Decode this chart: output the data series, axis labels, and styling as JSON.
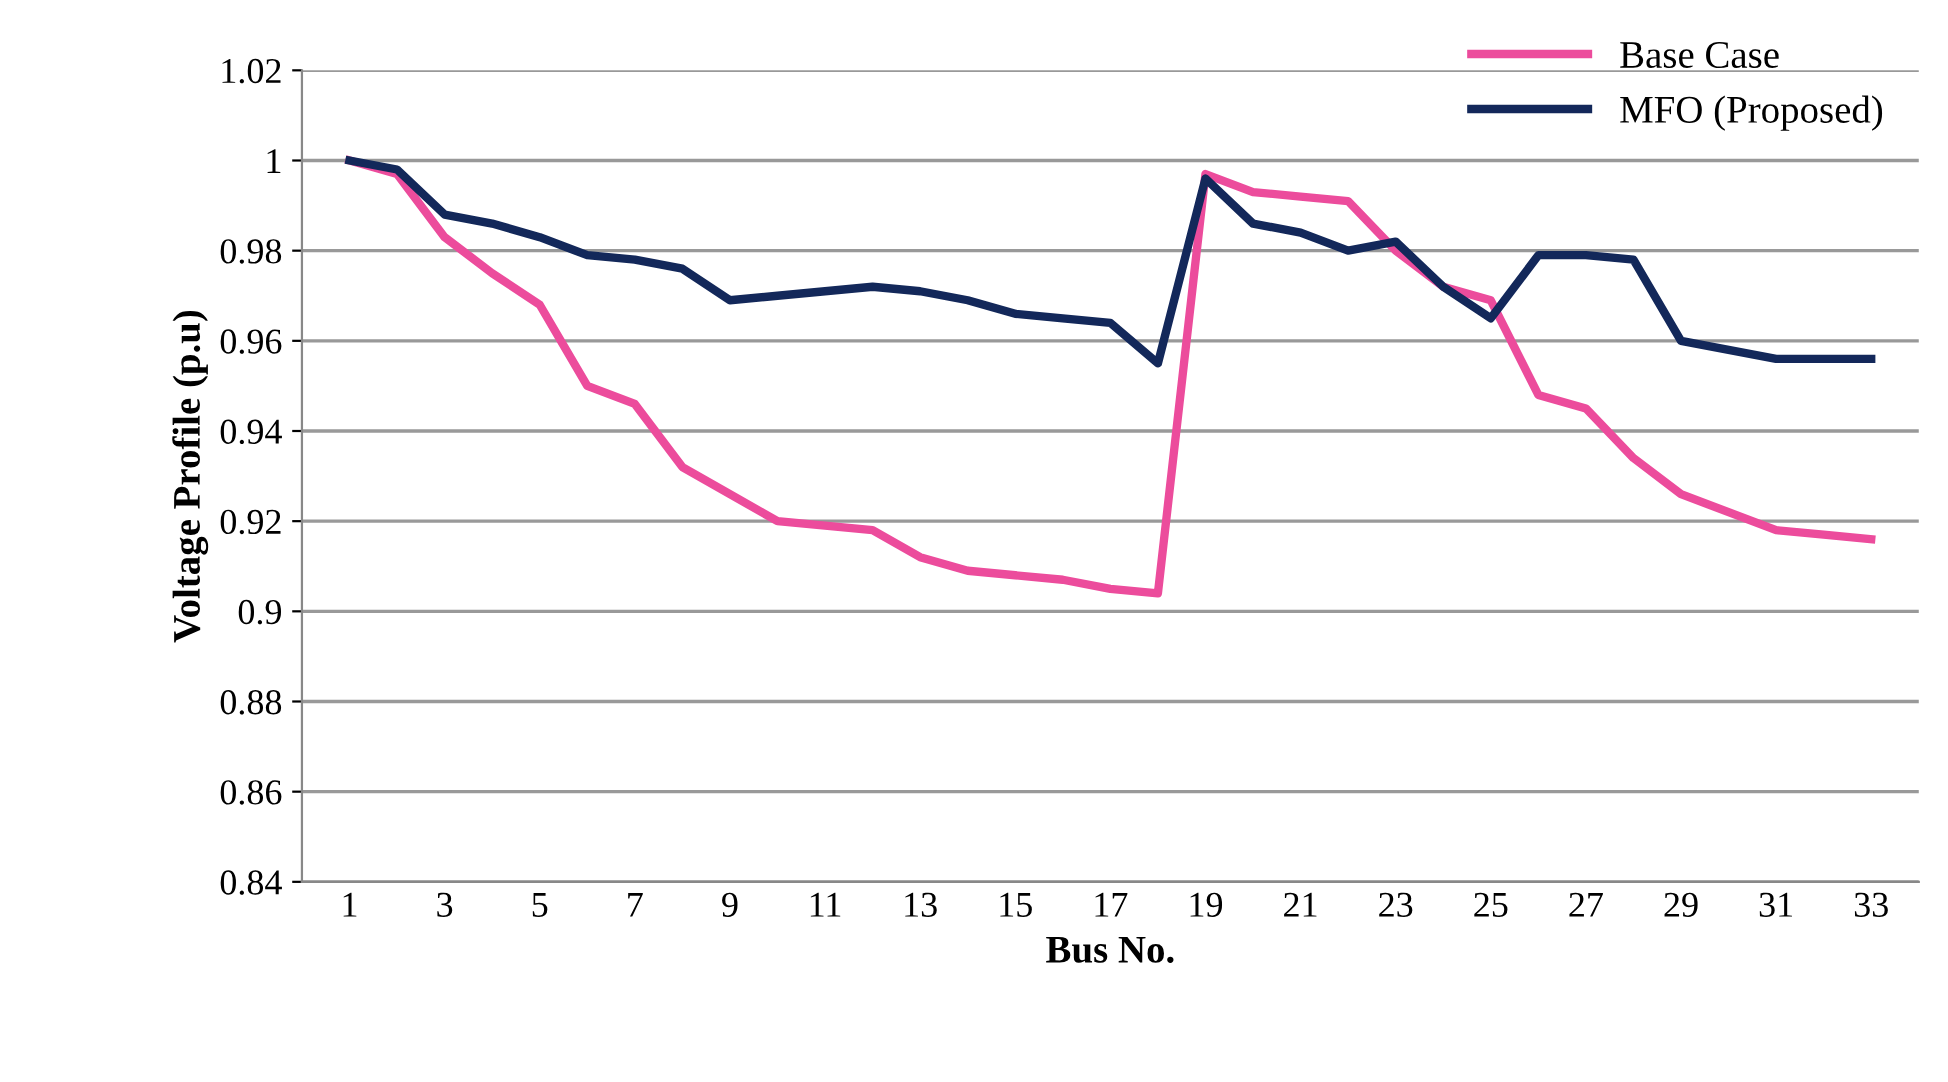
{
  "chart_data": {
    "type": "line",
    "xlabel": "Bus No.",
    "ylabel": "Voltage Profile (p.u)",
    "x": [
      1,
      2,
      3,
      4,
      5,
      6,
      7,
      8,
      9,
      10,
      11,
      12,
      13,
      14,
      15,
      16,
      17,
      18,
      19,
      20,
      21,
      22,
      23,
      24,
      25,
      26,
      27,
      28,
      29,
      30,
      31,
      32,
      33
    ],
    "xlim": [
      0,
      34
    ],
    "xticks": [
      1,
      3,
      5,
      7,
      9,
      11,
      13,
      15,
      17,
      19,
      21,
      23,
      25,
      27,
      29,
      31,
      33
    ],
    "ylim": [
      0.84,
      1.02
    ],
    "yticks": [
      {
        "value": 0.84,
        "label": "0.84"
      },
      {
        "value": 0.86,
        "label": "0.86"
      },
      {
        "value": 0.88,
        "label": "0.88"
      },
      {
        "value": 0.9,
        "label": "0.9"
      },
      {
        "value": 0.92,
        "label": "0.92"
      },
      {
        "value": 0.94,
        "label": "0.94"
      },
      {
        "value": 0.96,
        "label": "0.96"
      },
      {
        "value": 0.98,
        "label": "0.98"
      },
      {
        "value": 1,
        "label": "1"
      },
      {
        "value": 1.02,
        "label": "1.02"
      }
    ],
    "grid": "y",
    "legend": "top right",
    "series": [
      {
        "name": "Base Case",
        "color": "#ec4c9c",
        "values": [
          1,
          0.997,
          0.983,
          0.975,
          0.968,
          0.95,
          0.946,
          0.932,
          0.926,
          0.92,
          0.919,
          0.918,
          0.912,
          0.909,
          0.908,
          0.907,
          0.905,
          0.904,
          0.997,
          0.993,
          0.992,
          0.991,
          0.98,
          0.972,
          0.969,
          0.948,
          0.945,
          0.934,
          0.926,
          0.922,
          0.918,
          0.917,
          0.916
        ]
      },
      {
        "name": "MFO (Proposed)",
        "color": "#13285a",
        "values": [
          1,
          0.998,
          0.988,
          0.986,
          0.983,
          0.979,
          0.978,
          0.976,
          0.969,
          0.97,
          0.971,
          0.972,
          0.971,
          0.969,
          0.966,
          0.965,
          0.964,
          0.955,
          0.996,
          0.986,
          0.984,
          0.98,
          0.982,
          0.972,
          0.965,
          0.979,
          0.979,
          0.978,
          0.96,
          0.958,
          0.956,
          0.956,
          0.956
        ]
      }
    ]
  }
}
